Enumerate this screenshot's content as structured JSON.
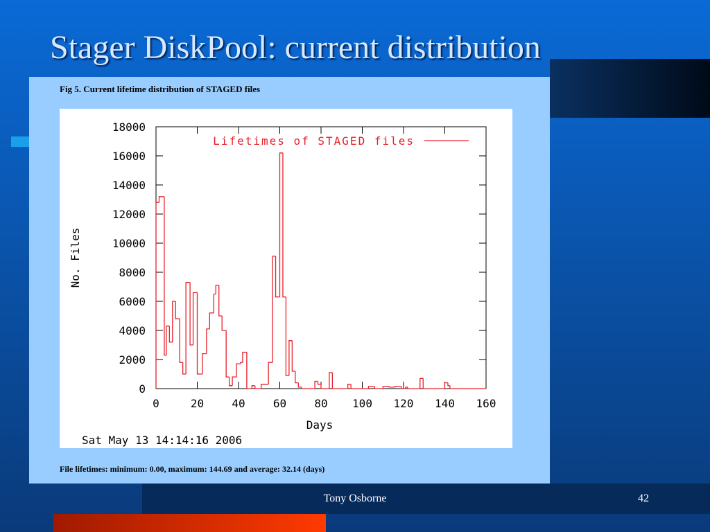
{
  "slide": {
    "title": "Stager DiskPool: current distribution",
    "footer": "Tony Osborne",
    "page": "42"
  },
  "chart_data": {
    "type": "histogram",
    "title": "Fig 5. Current lifetime distribution of STAGED files",
    "xlabel": "Days",
    "ylabel": "No. Files",
    "name": "Lifetimes of STAGED files",
    "color": "#e8202a",
    "timestamp": "Sat May 13 14:14:16 2006",
    "footnote": "File lifetimes: minimum: 0.00, maximum: 144.69 and average: 32.14 (days)",
    "bins": [
      0,
      1.5,
      4,
      5,
      6.5,
      8,
      9.5,
      11.5,
      13,
      14.5,
      16.5,
      18,
      20,
      22.5,
      24.5,
      26,
      28,
      29,
      30.5,
      32,
      34,
      35.5,
      37,
      39,
      41,
      42,
      44,
      46.5,
      48,
      51,
      54.5,
      56.5,
      58,
      60,
      61.5,
      63,
      64.5,
      66,
      67.5,
      69,
      70.5,
      77,
      78.5,
      80,
      84,
      85.5,
      93,
      94.5,
      103,
      106,
      110,
      113,
      116,
      119,
      121,
      122,
      128,
      129.5,
      140,
      141.5,
      142.5,
      160
    ],
    "counts": [
      12800,
      13200,
      2300,
      4300,
      3200,
      6000,
      4800,
      1800,
      1000,
      7300,
      3000,
      6600,
      1000,
      2400,
      4100,
      5200,
      6500,
      7100,
      5000,
      4000,
      800,
      200,
      800,
      1700,
      1800,
      2500,
      0,
      200,
      0,
      300,
      1800,
      9100,
      6300,
      16200,
      6300,
      900,
      3300,
      1200,
      400,
      100,
      0,
      500,
      300,
      0,
      1100,
      0,
      300,
      0,
      150,
      0,
      150,
      100,
      150,
      0,
      100,
      0,
      700,
      0,
      400,
      200,
      0
    ],
    "xlim": [
      0,
      160
    ],
    "ylim": [
      0,
      18000
    ],
    "xticks": [
      0,
      20,
      40,
      60,
      80,
      100,
      120,
      140,
      160
    ],
    "yticks": [
      0,
      2000,
      4000,
      6000,
      8000,
      10000,
      12000,
      14000,
      16000,
      18000
    ]
  }
}
